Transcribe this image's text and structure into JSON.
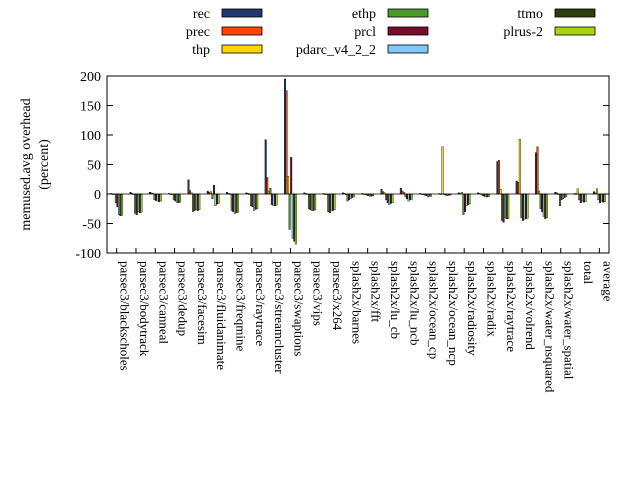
{
  "chart_data": {
    "type": "bar",
    "ylabel": "memused.avg overhead (percent)",
    "ylabel_lines": [
      "memused.avg overhead",
      "(percent)"
    ],
    "ylim": [
      -100,
      200
    ],
    "yticks": [
      -100,
      -50,
      0,
      50,
      100,
      150,
      200
    ],
    "grid": false,
    "legend_position": "top",
    "categories": [
      "parsec3/blackscholes",
      "parsec3/bodytrack",
      "parsec3/canneal",
      "parsec3/dedup",
      "parsec3/facesim",
      "parsec3/fluidanimate",
      "parsec3/freqmine",
      "parsec3/raytrace",
      "parsec3/streamcluster",
      "parsec3/swaptions",
      "parsec3/vips",
      "parsec3/x264",
      "splash2x/barnes",
      "splash2x/fft",
      "splash2x/lu_cb",
      "splash2x/lu_ncb",
      "splash2x/ocean_cp",
      "splash2x/ocean_ncp",
      "splash2x/radiosity",
      "splash2x/radix",
      "splash2x/raytrace",
      "splash2x/volrend",
      "splash2x/water_nsquared",
      "splash2x/water_spatial",
      "total",
      "average"
    ],
    "series": [
      {
        "name": "rec",
        "color": "#1f3a6e",
        "values": [
          1,
          3,
          3,
          1,
          24,
          5,
          3,
          2,
          92,
          195,
          2,
          1,
          2,
          1,
          8,
          10,
          1,
          1,
          2,
          2,
          55,
          22,
          70,
          3,
          1,
          4
        ]
      },
      {
        "name": "prec",
        "color": "#ff4500",
        "values": [
          0,
          1,
          2,
          0,
          6,
          3,
          1,
          1,
          28,
          175,
          1,
          0,
          1,
          0,
          4,
          5,
          0,
          0,
          1,
          1,
          57,
          20,
          80,
          2,
          0,
          2
        ]
      },
      {
        "name": "thp",
        "color": "#ffd700",
        "values": [
          -1,
          -1,
          1,
          -1,
          2,
          4,
          0,
          -1,
          5,
          30,
          0,
          -1,
          -1,
          -1,
          2,
          3,
          -1,
          80,
          3,
          0,
          8,
          93,
          5,
          -1,
          9,
          9
        ]
      },
      {
        "name": "ethp",
        "color": "#4c9a2a",
        "values": [
          -15,
          -33,
          -10,
          -10,
          -30,
          -8,
          -28,
          -20,
          10,
          -60,
          -25,
          -30,
          -12,
          -2,
          -10,
          -5,
          -2,
          -1,
          -35,
          -3,
          -45,
          -40,
          -25,
          -20,
          -10,
          -10
        ]
      },
      {
        "name": "prcl",
        "color": "#7a0a2b",
        "values": [
          -22,
          -35,
          -11,
          -12,
          -28,
          15,
          -30,
          -22,
          -18,
          62,
          -27,
          -32,
          -10,
          -3,
          -15,
          -8,
          -3,
          -2,
          -30,
          -4,
          -48,
          -45,
          -30,
          -10,
          -15,
          -15
        ]
      },
      {
        "name": "pdarc_v4_2_2",
        "color": "#7fc8f8",
        "values": [
          -35,
          -30,
          -12,
          -14,
          -27,
          -20,
          -33,
          -28,
          -20,
          -75,
          -28,
          -28,
          -8,
          -4,
          -18,
          -12,
          -5,
          -3,
          -20,
          -5,
          -40,
          -43,
          -38,
          -8,
          -12,
          -12
        ]
      },
      {
        "name": "ttmo",
        "color": "#2f3a0f",
        "values": [
          -37,
          -32,
          -13,
          -15,
          -28,
          -17,
          -32,
          -26,
          -20,
          -80,
          -28,
          -28,
          -6,
          -4,
          -16,
          -10,
          -4,
          -2,
          -18,
          -5,
          -42,
          -42,
          -42,
          -6,
          -14,
          -14
        ]
      },
      {
        "name": "plrus-2",
        "color": "#a8d40f",
        "values": [
          -36,
          -31,
          -12,
          -14,
          -27,
          -16,
          -31,
          -25,
          -19,
          -85,
          -27,
          -27,
          -5,
          -3,
          -15,
          -9,
          -4,
          -2,
          -17,
          -4,
          -42,
          -41,
          -40,
          -5,
          -13,
          -13
        ]
      }
    ]
  }
}
